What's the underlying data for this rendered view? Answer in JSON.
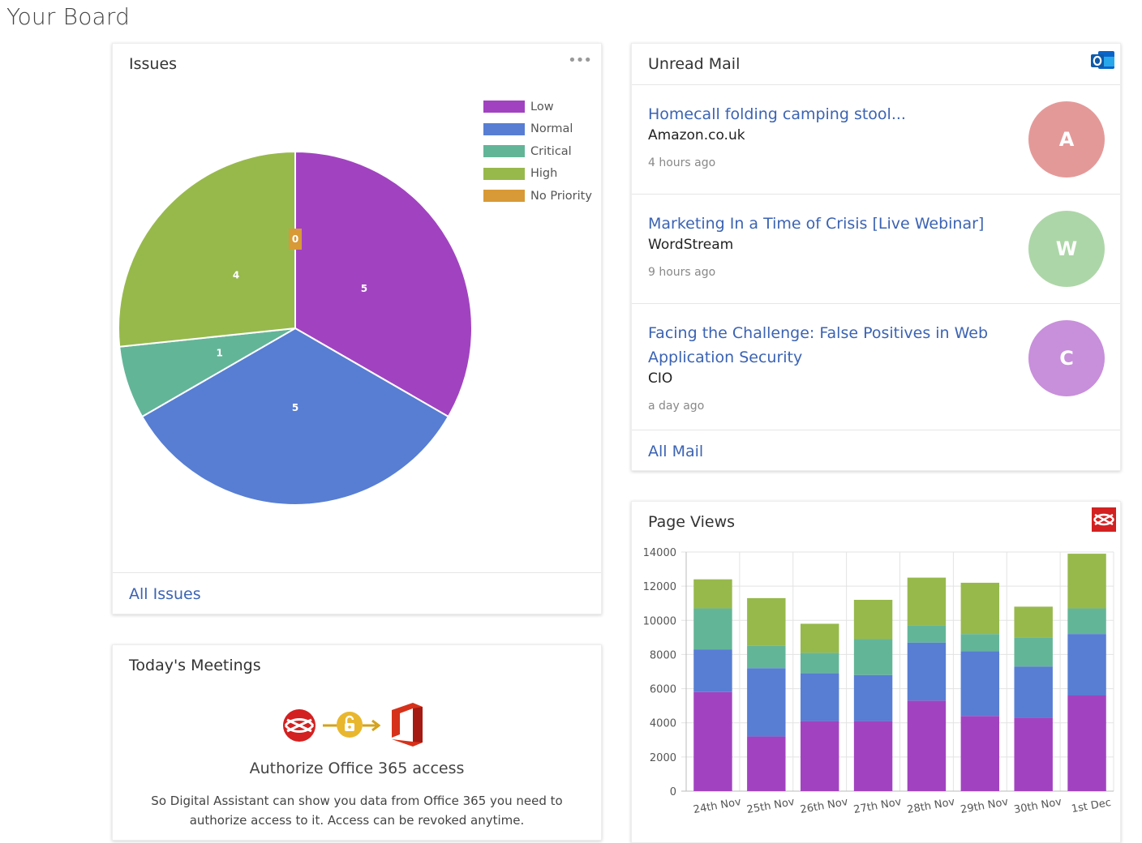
{
  "page": {
    "title": "Your Board"
  },
  "issues": {
    "title": "Issues",
    "more_label": "•••",
    "footer_link": "All Issues",
    "chart_data": {
      "type": "pie",
      "slices": [
        {
          "label": "Low",
          "value": 5,
          "color": "#a143c0"
        },
        {
          "label": "Normal",
          "value": 5,
          "color": "#577ed3"
        },
        {
          "label": "Critical",
          "value": 1,
          "color": "#63b598"
        },
        {
          "label": "High",
          "value": 4,
          "color": "#97b94c"
        },
        {
          "label": "No Priority",
          "value": 0,
          "color": "#d89a36"
        }
      ],
      "legend_position": "top-right"
    }
  },
  "mail": {
    "title": "Unread Mail",
    "footer_link": "All Mail",
    "app_icon": "outlook-icon",
    "items": [
      {
        "subject": "Homecall folding camping stool...",
        "sender": "Amazon.co.uk",
        "time": "4 hours ago",
        "initial": "A",
        "avatar_color": "#e49999"
      },
      {
        "subject": "Marketing In a Time of Crisis [Live Webinar]",
        "sender": "WordStream",
        "time": "9 hours ago",
        "initial": "W",
        "avatar_color": "#add6a8"
      },
      {
        "subject": "Facing the Challenge: False Positives in Web Application Security",
        "sender": "CIO",
        "time": "a day ago",
        "initial": "C",
        "avatar_color": "#c88fdb"
      }
    ]
  },
  "meetings": {
    "title": "Today's Meetings",
    "auth_title": "Authorize Office 365 access",
    "auth_desc": "So Digital Assistant can show you data from Office 365 you need to authorize access to it. Access can be revoked anytime.",
    "icons": [
      "app-logo-icon",
      "lock-icon",
      "office-icon"
    ]
  },
  "pageviews": {
    "title": "Page Views",
    "app_icon": "app-logo-icon",
    "chart_data": {
      "type": "bar",
      "stacked": true,
      "categories": [
        "24th Nov",
        "25th Nov",
        "26th Nov",
        "27th Nov",
        "28th Nov",
        "29th Nov",
        "30th Nov",
        "1st Dec"
      ],
      "series": [
        {
          "values": [
            5800,
            3200,
            4100,
            4100,
            5300,
            4400,
            4300,
            5600
          ],
          "color": "#a143c0"
        },
        {
          "values": [
            2500,
            4000,
            2800,
            2700,
            3400,
            3800,
            3000,
            3600
          ],
          "color": "#577ed3"
        },
        {
          "values": [
            2400,
            1300,
            1200,
            2100,
            1000,
            1000,
            1700,
            1500
          ],
          "color": "#63b598"
        },
        {
          "values": [
            1700,
            2800,
            1700,
            2300,
            2800,
            3000,
            1800,
            3200
          ],
          "color": "#97b94c"
        }
      ],
      "ylim": [
        0,
        14000
      ],
      "yticks": [
        "14000",
        "12000",
        "10000",
        "8000",
        "6000",
        "4000",
        "2000",
        "0"
      ],
      "grid": true
    }
  }
}
